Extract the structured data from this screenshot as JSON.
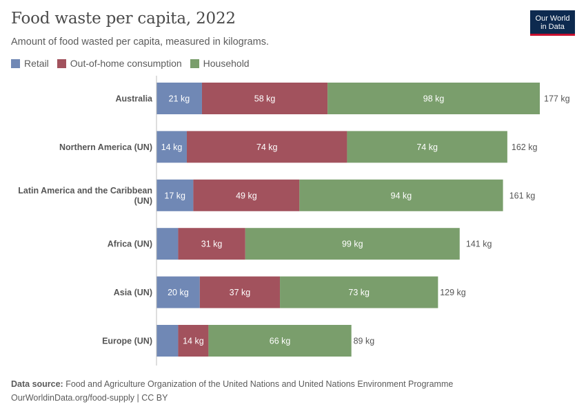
{
  "header": {
    "title": "Food waste per capita, 2022",
    "subtitle": "Amount of food wasted per capita, measured in kilograms.",
    "logo_line1": "Our World",
    "logo_line2": "in Data"
  },
  "footer": {
    "source_label": "Data source:",
    "source_text": "Food and Agriculture Organization of the United Nations and United Nations Environment Programme",
    "url_text": "OurWorldinData.org/food-supply | CC BY"
  },
  "colors": {
    "retail": "#7088b5",
    "out_of_home": "#a2525d",
    "household": "#7a9e6c",
    "axis": "#bdbdbd"
  },
  "chart_data": {
    "type": "bar",
    "orientation": "horizontal",
    "stacked": true,
    "title": "Food waste per capita, 2022",
    "subtitle": "Amount of food wasted per capita, measured in kilograms.",
    "unit": "kg",
    "legend_position": "top-left",
    "categories": [
      "Australia",
      "Northern America (UN)",
      "Latin America and the Caribbean (UN)",
      "Africa (UN)",
      "Asia (UN)",
      "Europe (UN)"
    ],
    "series": [
      {
        "name": "Retail",
        "values": [
          21,
          14,
          17,
          10,
          20,
          10
        ],
        "labels": [
          "21 kg",
          "14 kg",
          "17 kg",
          "",
          "20 kg",
          ""
        ]
      },
      {
        "name": "Out-of-home consumption",
        "values": [
          58,
          74,
          49,
          31,
          37,
          14
        ],
        "labels": [
          "58 kg",
          "74 kg",
          "49 kg",
          "31 kg",
          "37 kg",
          "14 kg"
        ]
      },
      {
        "name": "Household",
        "values": [
          98,
          74,
          94,
          99,
          73,
          66
        ],
        "labels": [
          "98 kg",
          "74 kg",
          "94 kg",
          "99 kg",
          "73 kg",
          "66 kg"
        ]
      }
    ],
    "totals": [
      177,
      162,
      161,
      141,
      129,
      89
    ],
    "total_labels": [
      "177 kg",
      "162 kg",
      "161 kg",
      "141 kg",
      "129 kg",
      "89 kg"
    ],
    "xlim": [
      0,
      177
    ]
  }
}
